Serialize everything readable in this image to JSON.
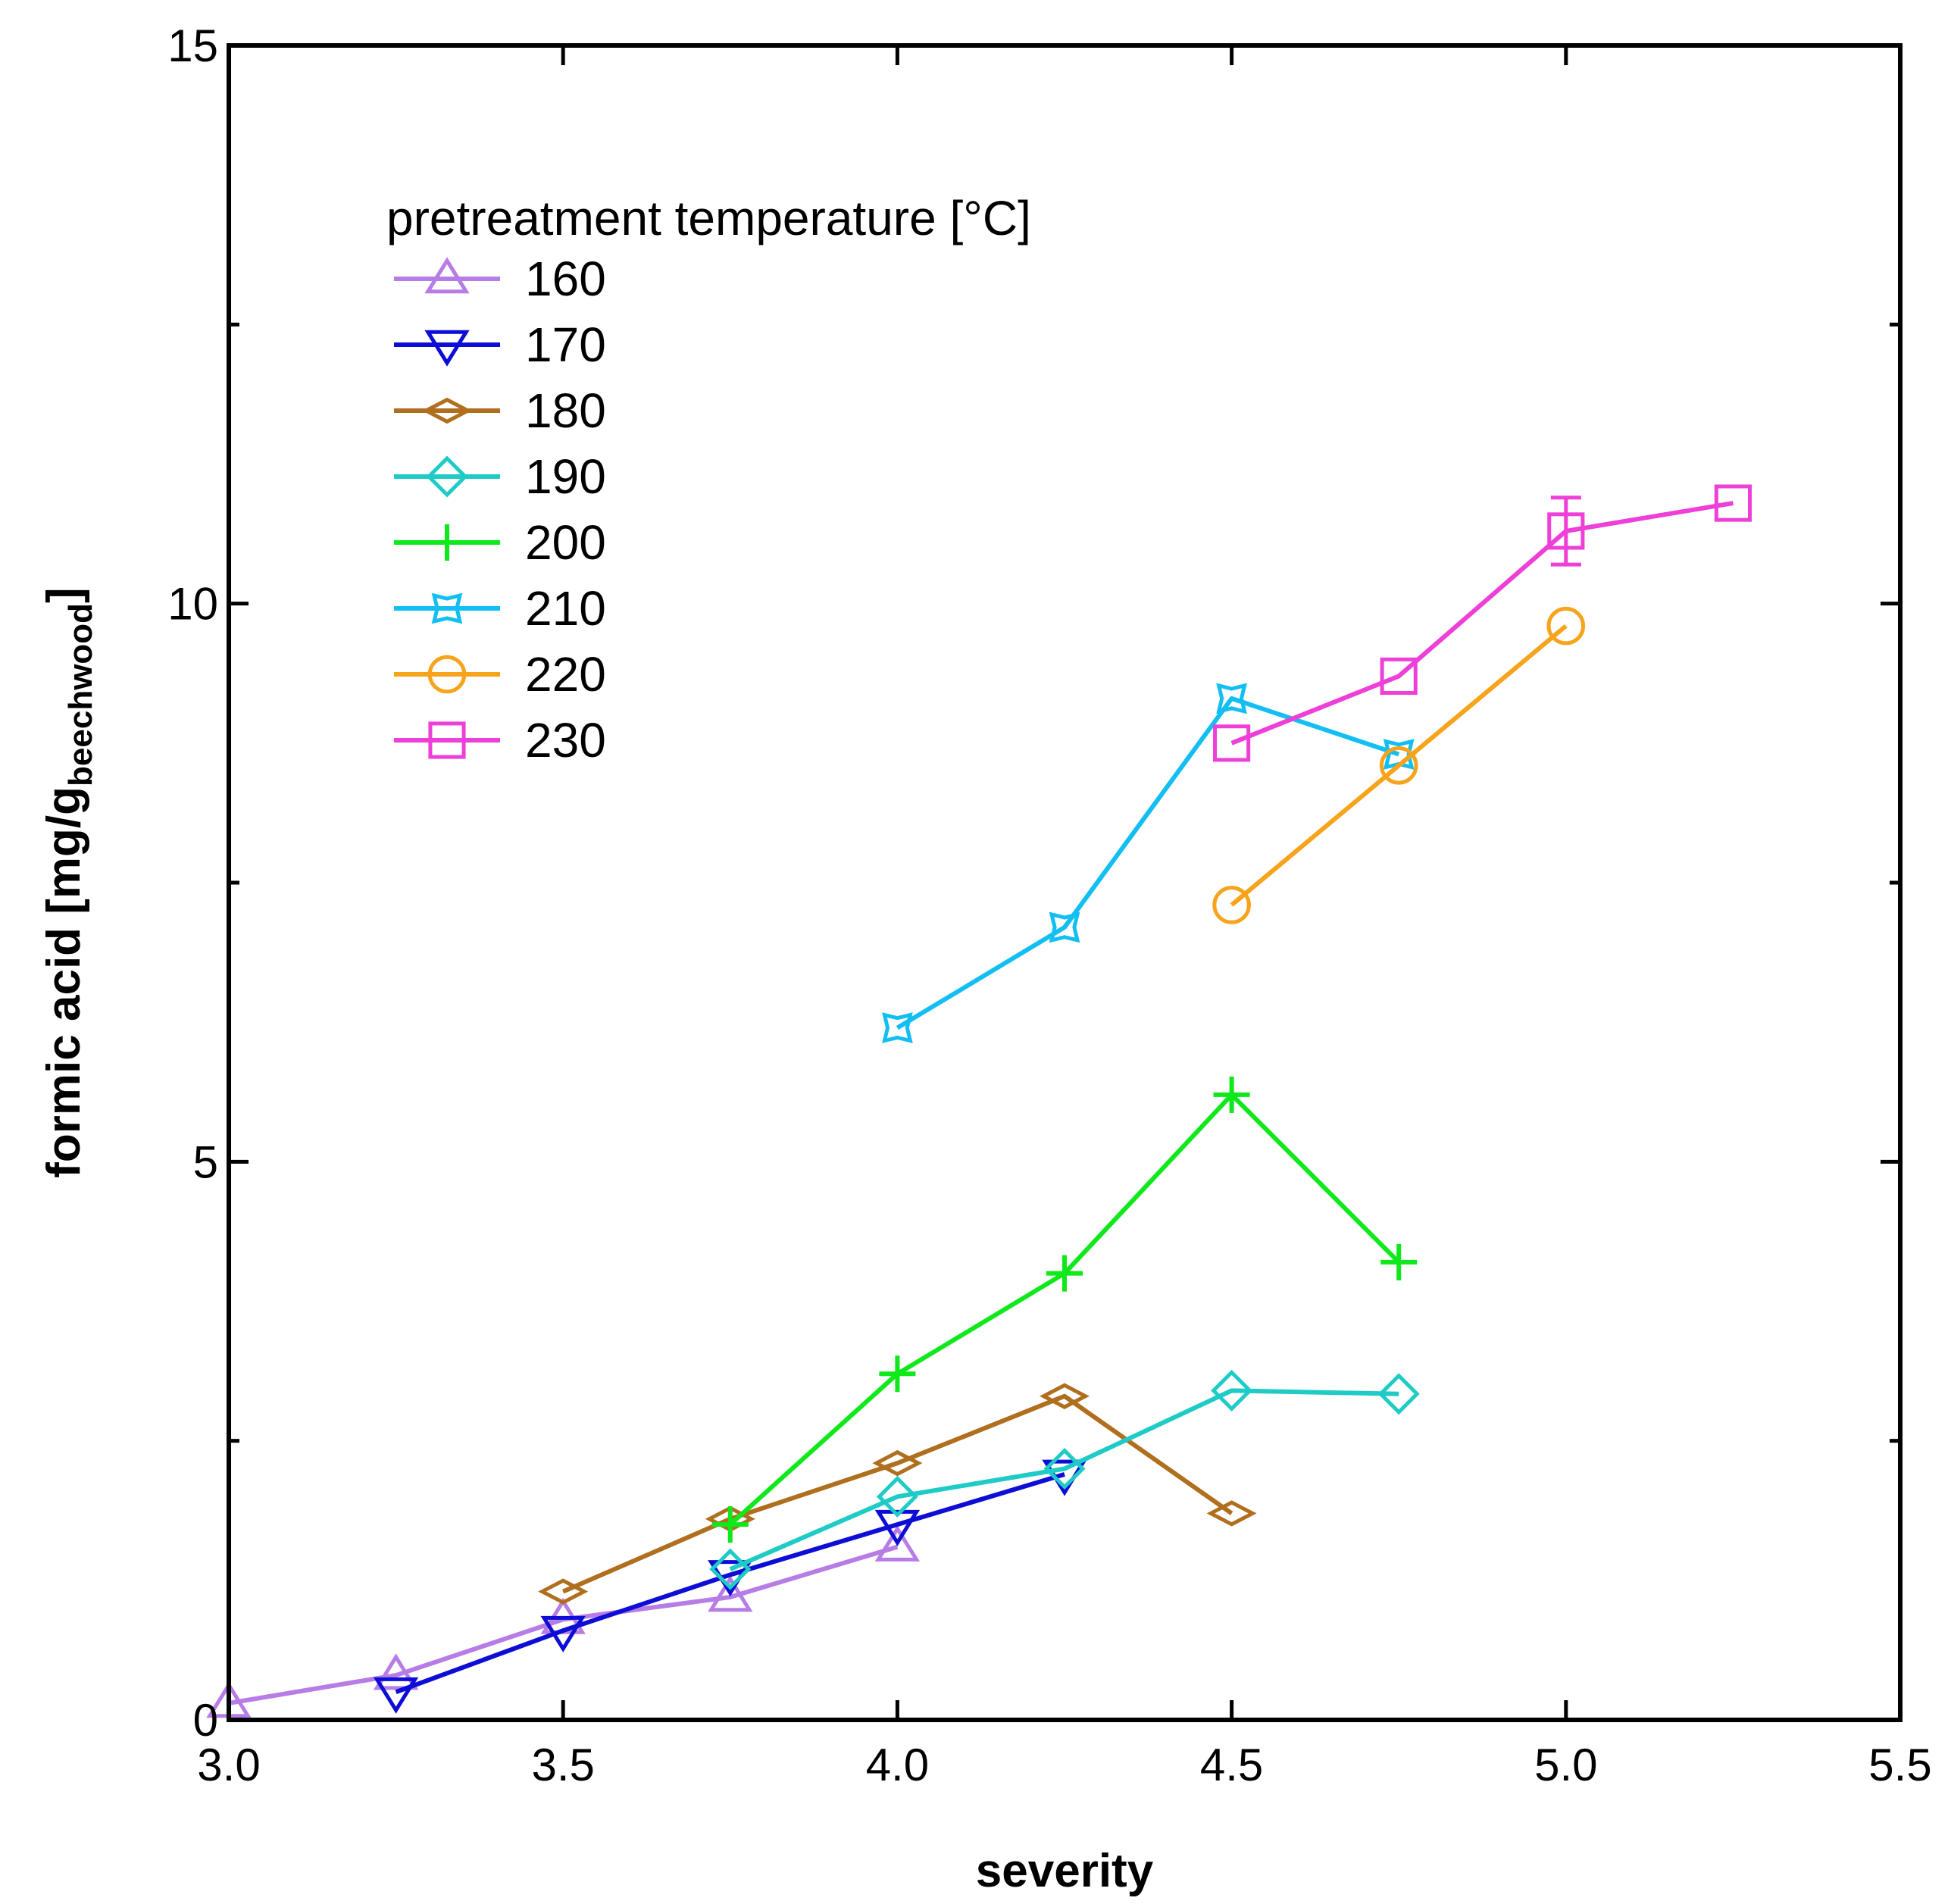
{
  "chart_data": {
    "type": "line",
    "title": "",
    "xlabel": "severity",
    "ylabel": {
      "main": "formic acid  [mg/g",
      "subscript": "beechwood",
      "close": "]"
    },
    "xlim": [
      3.0,
      5.5
    ],
    "ylim": [
      0,
      15
    ],
    "x_ticks": [
      "3.0",
      "3.5",
      "4.0",
      "4.5",
      "5.0",
      "5.5"
    ],
    "x_tick_values": [
      3.0,
      3.5,
      4.0,
      4.5,
      5.0,
      5.5
    ],
    "y_ticks": [
      "0",
      "5",
      "10",
      "15"
    ],
    "y_tick_values": [
      0,
      5,
      10,
      15
    ],
    "y_minor_ticks": [
      2.5,
      7.5,
      12.5
    ],
    "grid": false,
    "legend_title": "pretreatment temperature [°C]",
    "legend_position": "top-left",
    "series": [
      {
        "name": "160",
        "color": "#b77de6",
        "marker": "triangle-up",
        "x": [
          3.0,
          3.25,
          3.5,
          3.75,
          4.0
        ],
        "y": [
          0.15,
          0.4,
          0.9,
          1.1,
          1.55
        ]
      },
      {
        "name": "170",
        "color": "#0d0dd6",
        "marker": "triangle-down",
        "x": [
          3.25,
          3.5,
          3.75,
          4.0,
          4.25
        ],
        "y": [
          0.25,
          0.8,
          1.3,
          1.75,
          2.2
        ]
      },
      {
        "name": "180",
        "color": "#b06f1e",
        "marker": "diamond-flat",
        "x": [
          3.5,
          3.75,
          4.0,
          4.25,
          4.5
        ],
        "y": [
          1.15,
          1.8,
          2.3,
          2.9,
          1.85
        ]
      },
      {
        "name": "190",
        "color": "#1ecbc6",
        "marker": "diamond",
        "x": [
          3.75,
          4.0,
          4.25,
          4.5,
          4.75
        ],
        "y": [
          1.35,
          2.0,
          2.25,
          2.95,
          2.92
        ]
      },
      {
        "name": "200",
        "color": "#0fe81a",
        "marker": "plus",
        "x": [
          3.75,
          4.0,
          4.25,
          4.5,
          4.75
        ],
        "y": [
          1.75,
          3.1,
          4.0,
          5.6,
          4.1
        ]
      },
      {
        "name": "210",
        "color": "#13bff2",
        "marker": "star",
        "x": [
          4.0,
          4.25,
          4.5,
          4.75
        ],
        "y": [
          6.2,
          7.1,
          9.15,
          8.65
        ]
      },
      {
        "name": "220",
        "color": "#f8a31c",
        "marker": "circle",
        "x": [
          4.5,
          4.75,
          5.0
        ],
        "y": [
          7.3,
          8.55,
          9.8
        ]
      },
      {
        "name": "230",
        "color": "#ee3fd8",
        "marker": "square",
        "x": [
          4.5,
          4.75,
          5.0,
          5.25
        ],
        "y": [
          8.75,
          9.35,
          10.65,
          10.9
        ],
        "error_y": [
          0,
          0,
          0.3,
          0
        ]
      }
    ]
  }
}
